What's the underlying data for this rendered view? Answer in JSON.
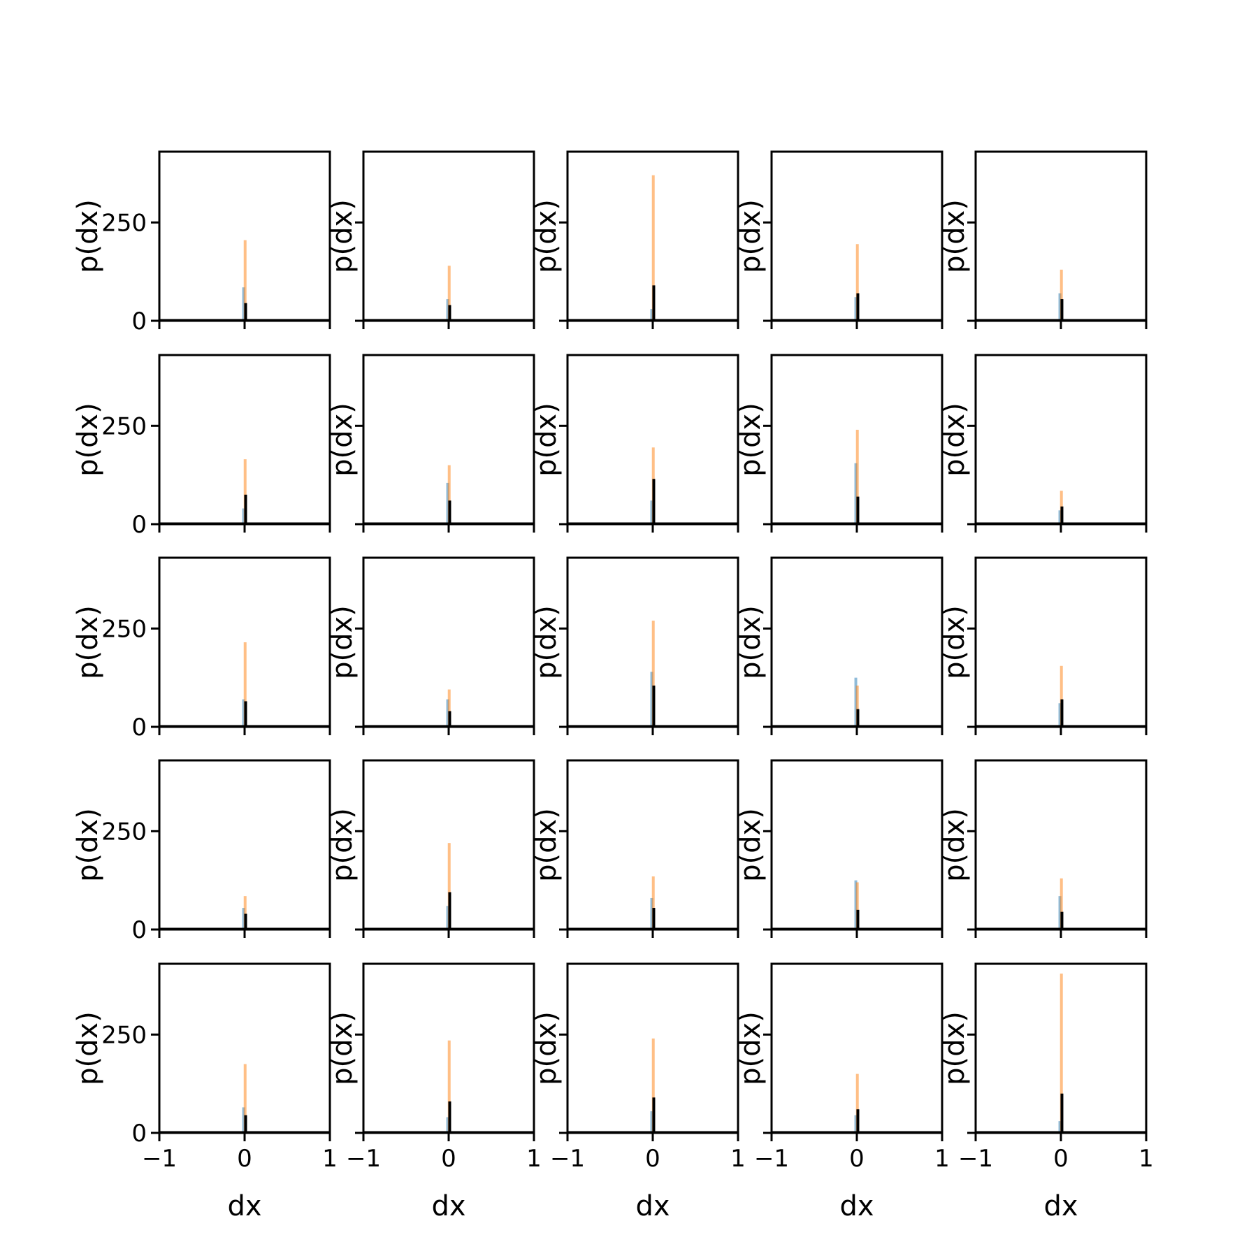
{
  "colors": {
    "series_a": "#1f77b4",
    "series_b": "#ff7f0e",
    "series_c": "#000000"
  },
  "chart_data": {
    "type": "bar",
    "layout": "grid",
    "rows": 5,
    "cols": 5,
    "xlabel": "dx",
    "ylabel": "p(dx)",
    "xlim": [
      -1,
      1
    ],
    "ylim": [
      0,
      430
    ],
    "xticks": [
      -1,
      0,
      1
    ],
    "xtick_labels": [
      "−1",
      "0",
      "1"
    ],
    "yticks": [
      0,
      250
    ],
    "ytick_labels": [
      "0",
      "250"
    ],
    "grid": false,
    "legend": "none",
    "series_styles": [
      {
        "color": "#1f77b4",
        "alpha": 0.5
      },
      {
        "color": "#ff7f0e",
        "alpha": 0.5
      },
      {
        "color": "#000000",
        "alpha": 1.0
      }
    ],
    "panels": [
      {
        "row": 0,
        "col": 0,
        "peaks": [
          85,
          205,
          45
        ]
      },
      {
        "row": 0,
        "col": 1,
        "peaks": [
          55,
          140,
          40
        ]
      },
      {
        "row": 0,
        "col": 2,
        "peaks": [
          30,
          370,
          90
        ]
      },
      {
        "row": 0,
        "col": 3,
        "peaks": [
          60,
          195,
          70
        ]
      },
      {
        "row": 0,
        "col": 4,
        "peaks": [
          70,
          130,
          55
        ]
      },
      {
        "row": 1,
        "col": 0,
        "peaks": [
          40,
          165,
          75
        ]
      },
      {
        "row": 1,
        "col": 1,
        "peaks": [
          105,
          150,
          60
        ]
      },
      {
        "row": 1,
        "col": 2,
        "peaks": [
          60,
          195,
          115
        ]
      },
      {
        "row": 1,
        "col": 3,
        "peaks": [
          155,
          240,
          70
        ]
      },
      {
        "row": 1,
        "col": 4,
        "peaks": [
          35,
          85,
          45
        ]
      },
      {
        "row": 2,
        "col": 0,
        "peaks": [
          70,
          215,
          65
        ]
      },
      {
        "row": 2,
        "col": 1,
        "peaks": [
          70,
          95,
          40
        ]
      },
      {
        "row": 2,
        "col": 2,
        "peaks": [
          140,
          270,
          105
        ]
      },
      {
        "row": 2,
        "col": 3,
        "peaks": [
          125,
          105,
          45
        ]
      },
      {
        "row": 2,
        "col": 4,
        "peaks": [
          60,
          155,
          70
        ]
      },
      {
        "row": 3,
        "col": 0,
        "peaks": [
          55,
          85,
          40
        ]
      },
      {
        "row": 3,
        "col": 1,
        "peaks": [
          60,
          220,
          95
        ]
      },
      {
        "row": 3,
        "col": 2,
        "peaks": [
          80,
          135,
          55
        ]
      },
      {
        "row": 3,
        "col": 3,
        "peaks": [
          125,
          120,
          50
        ]
      },
      {
        "row": 3,
        "col": 4,
        "peaks": [
          85,
          130,
          45
        ]
      },
      {
        "row": 4,
        "col": 0,
        "peaks": [
          65,
          175,
          45
        ]
      },
      {
        "row": 4,
        "col": 1,
        "peaks": [
          40,
          235,
          80
        ]
      },
      {
        "row": 4,
        "col": 2,
        "peaks": [
          55,
          240,
          90
        ]
      },
      {
        "row": 4,
        "col": 3,
        "peaks": [
          45,
          150,
          60
        ]
      },
      {
        "row": 4,
        "col": 4,
        "peaks": [
          30,
          405,
          100
        ]
      }
    ]
  }
}
